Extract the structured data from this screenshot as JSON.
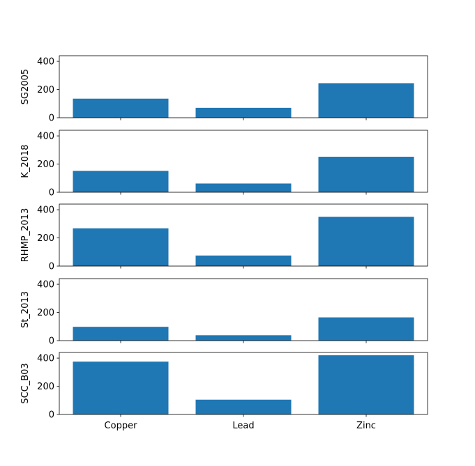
{
  "chart_data": {
    "type": "bar",
    "layout": "vertical-stacked-subplots",
    "shared_x": true,
    "categories": [
      "Copper",
      "Lead",
      "Zinc"
    ],
    "ylim": [
      0,
      440
    ],
    "yticks": [
      0,
      200,
      400
    ],
    "bar_color": "#1f77b4",
    "grid": false,
    "panels": [
      {
        "ylabel": "SG2005",
        "values": [
          135,
          70,
          245
        ]
      },
      {
        "ylabel": "K_2018",
        "values": [
          152,
          62,
          252
        ]
      },
      {
        "ylabel": "RHMP_2013",
        "values": [
          268,
          75,
          350
        ]
      },
      {
        "ylabel": "St_2013",
        "values": [
          98,
          38,
          165
        ]
      },
      {
        "ylabel": "SCC_B03",
        "values": [
          375,
          105,
          420
        ]
      }
    ]
  }
}
